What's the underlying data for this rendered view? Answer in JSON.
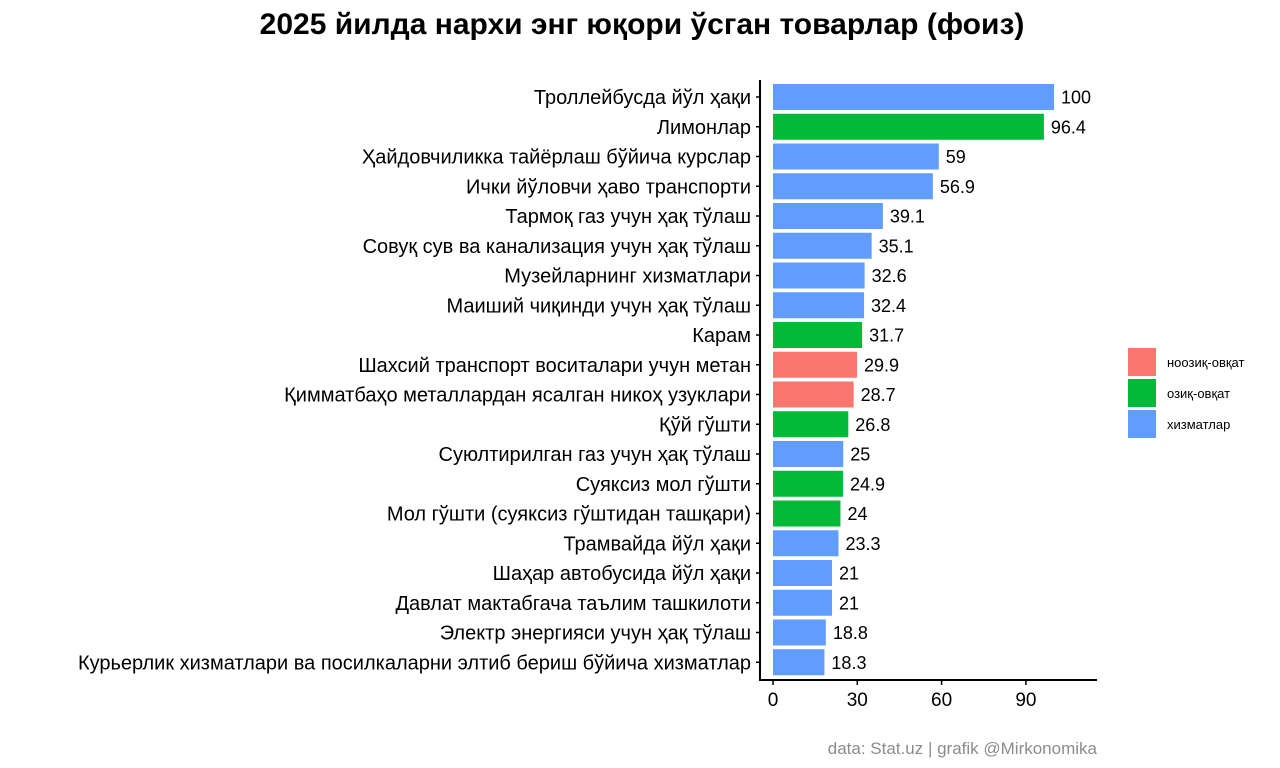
{
  "chart_data": {
    "type": "bar",
    "orientation": "horizontal",
    "title": "2025 йилда нархи энг юқори ўсган товарлар (фоиз)",
    "xlabel": "",
    "ylabel": "",
    "xlim": [
      0,
      112
    ],
    "xticks": [
      0,
      30,
      60,
      90
    ],
    "grid": false,
    "legend_position": "right",
    "caption": "data: Stat.uz | grafik @Mirkonomika",
    "groups": [
      {
        "key": "nonfood",
        "name": "ноозиқ-овқат",
        "color": "#F8766D"
      },
      {
        "key": "food",
        "name": "озиқ-овқат",
        "color": "#00BA38"
      },
      {
        "key": "services",
        "name": "хизматлар",
        "color": "#619CFF"
      }
    ],
    "bars": [
      {
        "category": "Троллейбусда йўл ҳақи",
        "value": 100,
        "value_label": "100",
        "group": "services"
      },
      {
        "category": "Лимонлар",
        "value": 96.4,
        "value_label": "96.4",
        "group": "food"
      },
      {
        "category": "Ҳайдовчиликка тайёрлаш бўйича курслар",
        "value": 59,
        "value_label": "59",
        "group": "services"
      },
      {
        "category": "Ички йўловчи ҳаво транспорти",
        "value": 56.9,
        "value_label": "56.9",
        "group": "services"
      },
      {
        "category": "Тармоқ газ учун ҳақ тўлаш",
        "value": 39.1,
        "value_label": "39.1",
        "group": "services"
      },
      {
        "category": "Совуқ сув ва канализация учун ҳақ тўлаш",
        "value": 35.1,
        "value_label": "35.1",
        "group": "services"
      },
      {
        "category": "Музейларнинг хизматлари",
        "value": 32.6,
        "value_label": "32.6",
        "group": "services"
      },
      {
        "category": "Маиший чиқинди учун ҳақ тўлаш",
        "value": 32.4,
        "value_label": "32.4",
        "group": "services"
      },
      {
        "category": "Карам",
        "value": 31.7,
        "value_label": "31.7",
        "group": "food"
      },
      {
        "category": "Шахсий транспорт воситалари учун метан",
        "value": 29.9,
        "value_label": "29.9",
        "group": "nonfood"
      },
      {
        "category": "Қимматбаҳо металлардан ясалган никоҳ узуклари",
        "value": 28.7,
        "value_label": "28.7",
        "group": "nonfood"
      },
      {
        "category": "Қўй гўшти",
        "value": 26.8,
        "value_label": "26.8",
        "group": "food"
      },
      {
        "category": "Суюлтирилган газ учун ҳақ тўлаш",
        "value": 25,
        "value_label": "25",
        "group": "services"
      },
      {
        "category": "Суяксиз мол гўшти",
        "value": 24.9,
        "value_label": "24.9",
        "group": "food"
      },
      {
        "category": "Мол гўшти (суяксиз гўштидан ташқари)",
        "value": 24,
        "value_label": "24",
        "group": "food"
      },
      {
        "category": "Трамвайда йўл ҳақи",
        "value": 23.3,
        "value_label": "23.3",
        "group": "services"
      },
      {
        "category": "Шаҳар автобусида йўл ҳақи",
        "value": 21,
        "value_label": "21",
        "group": "services"
      },
      {
        "category": "Давлат мактабгача таълим ташкилоти",
        "value": 21,
        "value_label": "21",
        "group": "services"
      },
      {
        "category": "Электр энергияси учун ҳақ тўлаш",
        "value": 18.8,
        "value_label": "18.8",
        "group": "services"
      },
      {
        "category": "Курьерлик хизматлари ва посилкаларни элтиб бериш бўйича хизматлар",
        "value": 18.3,
        "value_label": "18.3",
        "group": "services"
      }
    ]
  }
}
